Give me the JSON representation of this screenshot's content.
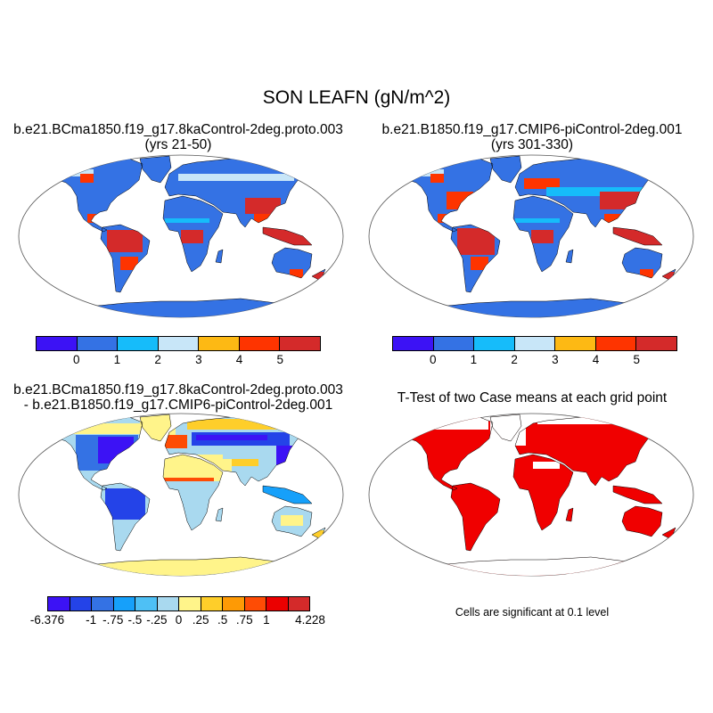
{
  "title": "SON LEAFN (gN/m^2)",
  "panels": [
    {
      "line1": "b.e21.BCma1850.f19_g17.8kaControl-2deg.proto.003",
      "line2": "(yrs 21-50)"
    },
    {
      "line1": "b.e21.B1850.f19_g17.CMIP6-piControl-2deg.001",
      "line2": "(yrs 301-330)"
    },
    {
      "line1": "b.e21.BCma1850.f19_g17.8kaControl-2deg.proto.003",
      "line2": "- b.e21.B1850.f19_g17.CMIP6-piControl-2deg.001"
    },
    {
      "line1": "T-Test of two Case means at each grid point",
      "note": "Cells are significant at 0.1 level"
    }
  ],
  "colorbar_abs": {
    "colors": [
      "#3c12f5",
      "#3472e4",
      "#16bcfa",
      "#c8e6f8",
      "#fdb914",
      "#fe3400",
      "#d42a2a"
    ],
    "labels": [
      null,
      "0",
      "1",
      "2",
      "3",
      "4",
      "5",
      null
    ]
  },
  "colorbar_diff": {
    "colors": [
      "#3c12f5",
      "#2443e8",
      "#3472e4",
      "#16a0fa",
      "#4ec0f5",
      "#a9d9ef",
      "#fff48a",
      "#fece2a",
      "#fe9a05",
      "#fe4c05",
      "#eb0000",
      "#d42a2a"
    ],
    "labels": [
      "-6.376",
      null,
      "-1",
      "-.75",
      "-.5",
      "-.25",
      "0",
      ".25",
      ".5",
      ".75",
      "1",
      null,
      "4.228"
    ]
  },
  "significance_color": "#f00000"
}
